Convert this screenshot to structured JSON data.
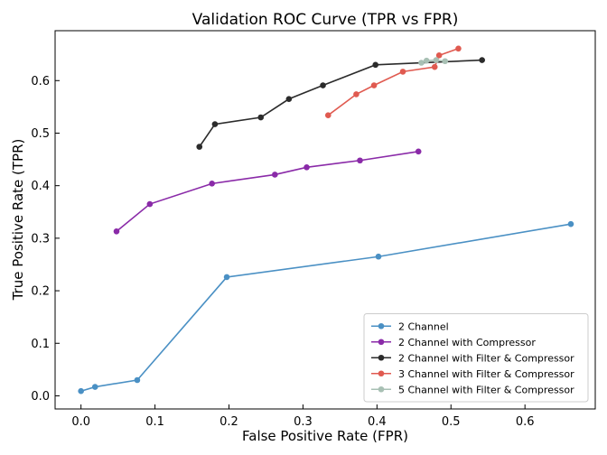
{
  "chart_data": {
    "type": "line",
    "title": "Validation ROC Curve (TPR vs FPR)",
    "xlabel": "False Positive Rate (FPR)",
    "ylabel": "True Positive Rate (TPR)",
    "xlim": [
      -0.035,
      0.695
    ],
    "ylim": [
      -0.025,
      0.695
    ],
    "xticks": [
      0.0,
      0.1,
      0.2,
      0.3,
      0.4,
      0.5,
      0.6
    ],
    "xtick_labels": [
      "0.0",
      "0.1",
      "0.2",
      "0.3",
      "0.4",
      "0.5",
      "0.6"
    ],
    "yticks": [
      0.0,
      0.1,
      0.2,
      0.3,
      0.4,
      0.5,
      0.6
    ],
    "ytick_labels": [
      "0.0",
      "0.1",
      "0.2",
      "0.3",
      "0.4",
      "0.5",
      "0.6"
    ],
    "grid": false,
    "legend_position": "bottom-right",
    "series": [
      {
        "name": "2 Channel",
        "color": "#4a90c4",
        "x": [
          0.0,
          0.019,
          0.076,
          0.197,
          0.402,
          0.662
        ],
        "y": [
          0.009,
          0.017,
          0.03,
          0.226,
          0.265,
          0.327
        ]
      },
      {
        "name": "2 Channel with Compressor",
        "color": "#8a2aa8",
        "x": [
          0.048,
          0.093,
          0.177,
          0.262,
          0.305,
          0.377,
          0.456
        ],
        "y": [
          0.313,
          0.365,
          0.404,
          0.421,
          0.435,
          0.448,
          0.465
        ]
      },
      {
        "name": "2 Channel with Filter & Compressor",
        "color": "#2b2b2b",
        "x": [
          0.16,
          0.181,
          0.243,
          0.281,
          0.327,
          0.398,
          0.542
        ],
        "y": [
          0.474,
          0.517,
          0.53,
          0.565,
          0.591,
          0.63,
          0.639
        ]
      },
      {
        "name": "3 Channel with Filter & Compressor",
        "color": "#e05a50",
        "x": [
          0.334,
          0.372,
          0.396,
          0.435,
          0.478,
          0.484,
          0.51
        ],
        "y": [
          0.534,
          0.574,
          0.591,
          0.617,
          0.626,
          0.648,
          0.661
        ]
      },
      {
        "name": "5 Channel with Filter & Compressor",
        "color": "#a8c0b4",
        "x": [
          0.46,
          0.467,
          0.48,
          0.492
        ],
        "y": [
          0.634,
          0.638,
          0.639,
          0.637
        ]
      }
    ]
  }
}
